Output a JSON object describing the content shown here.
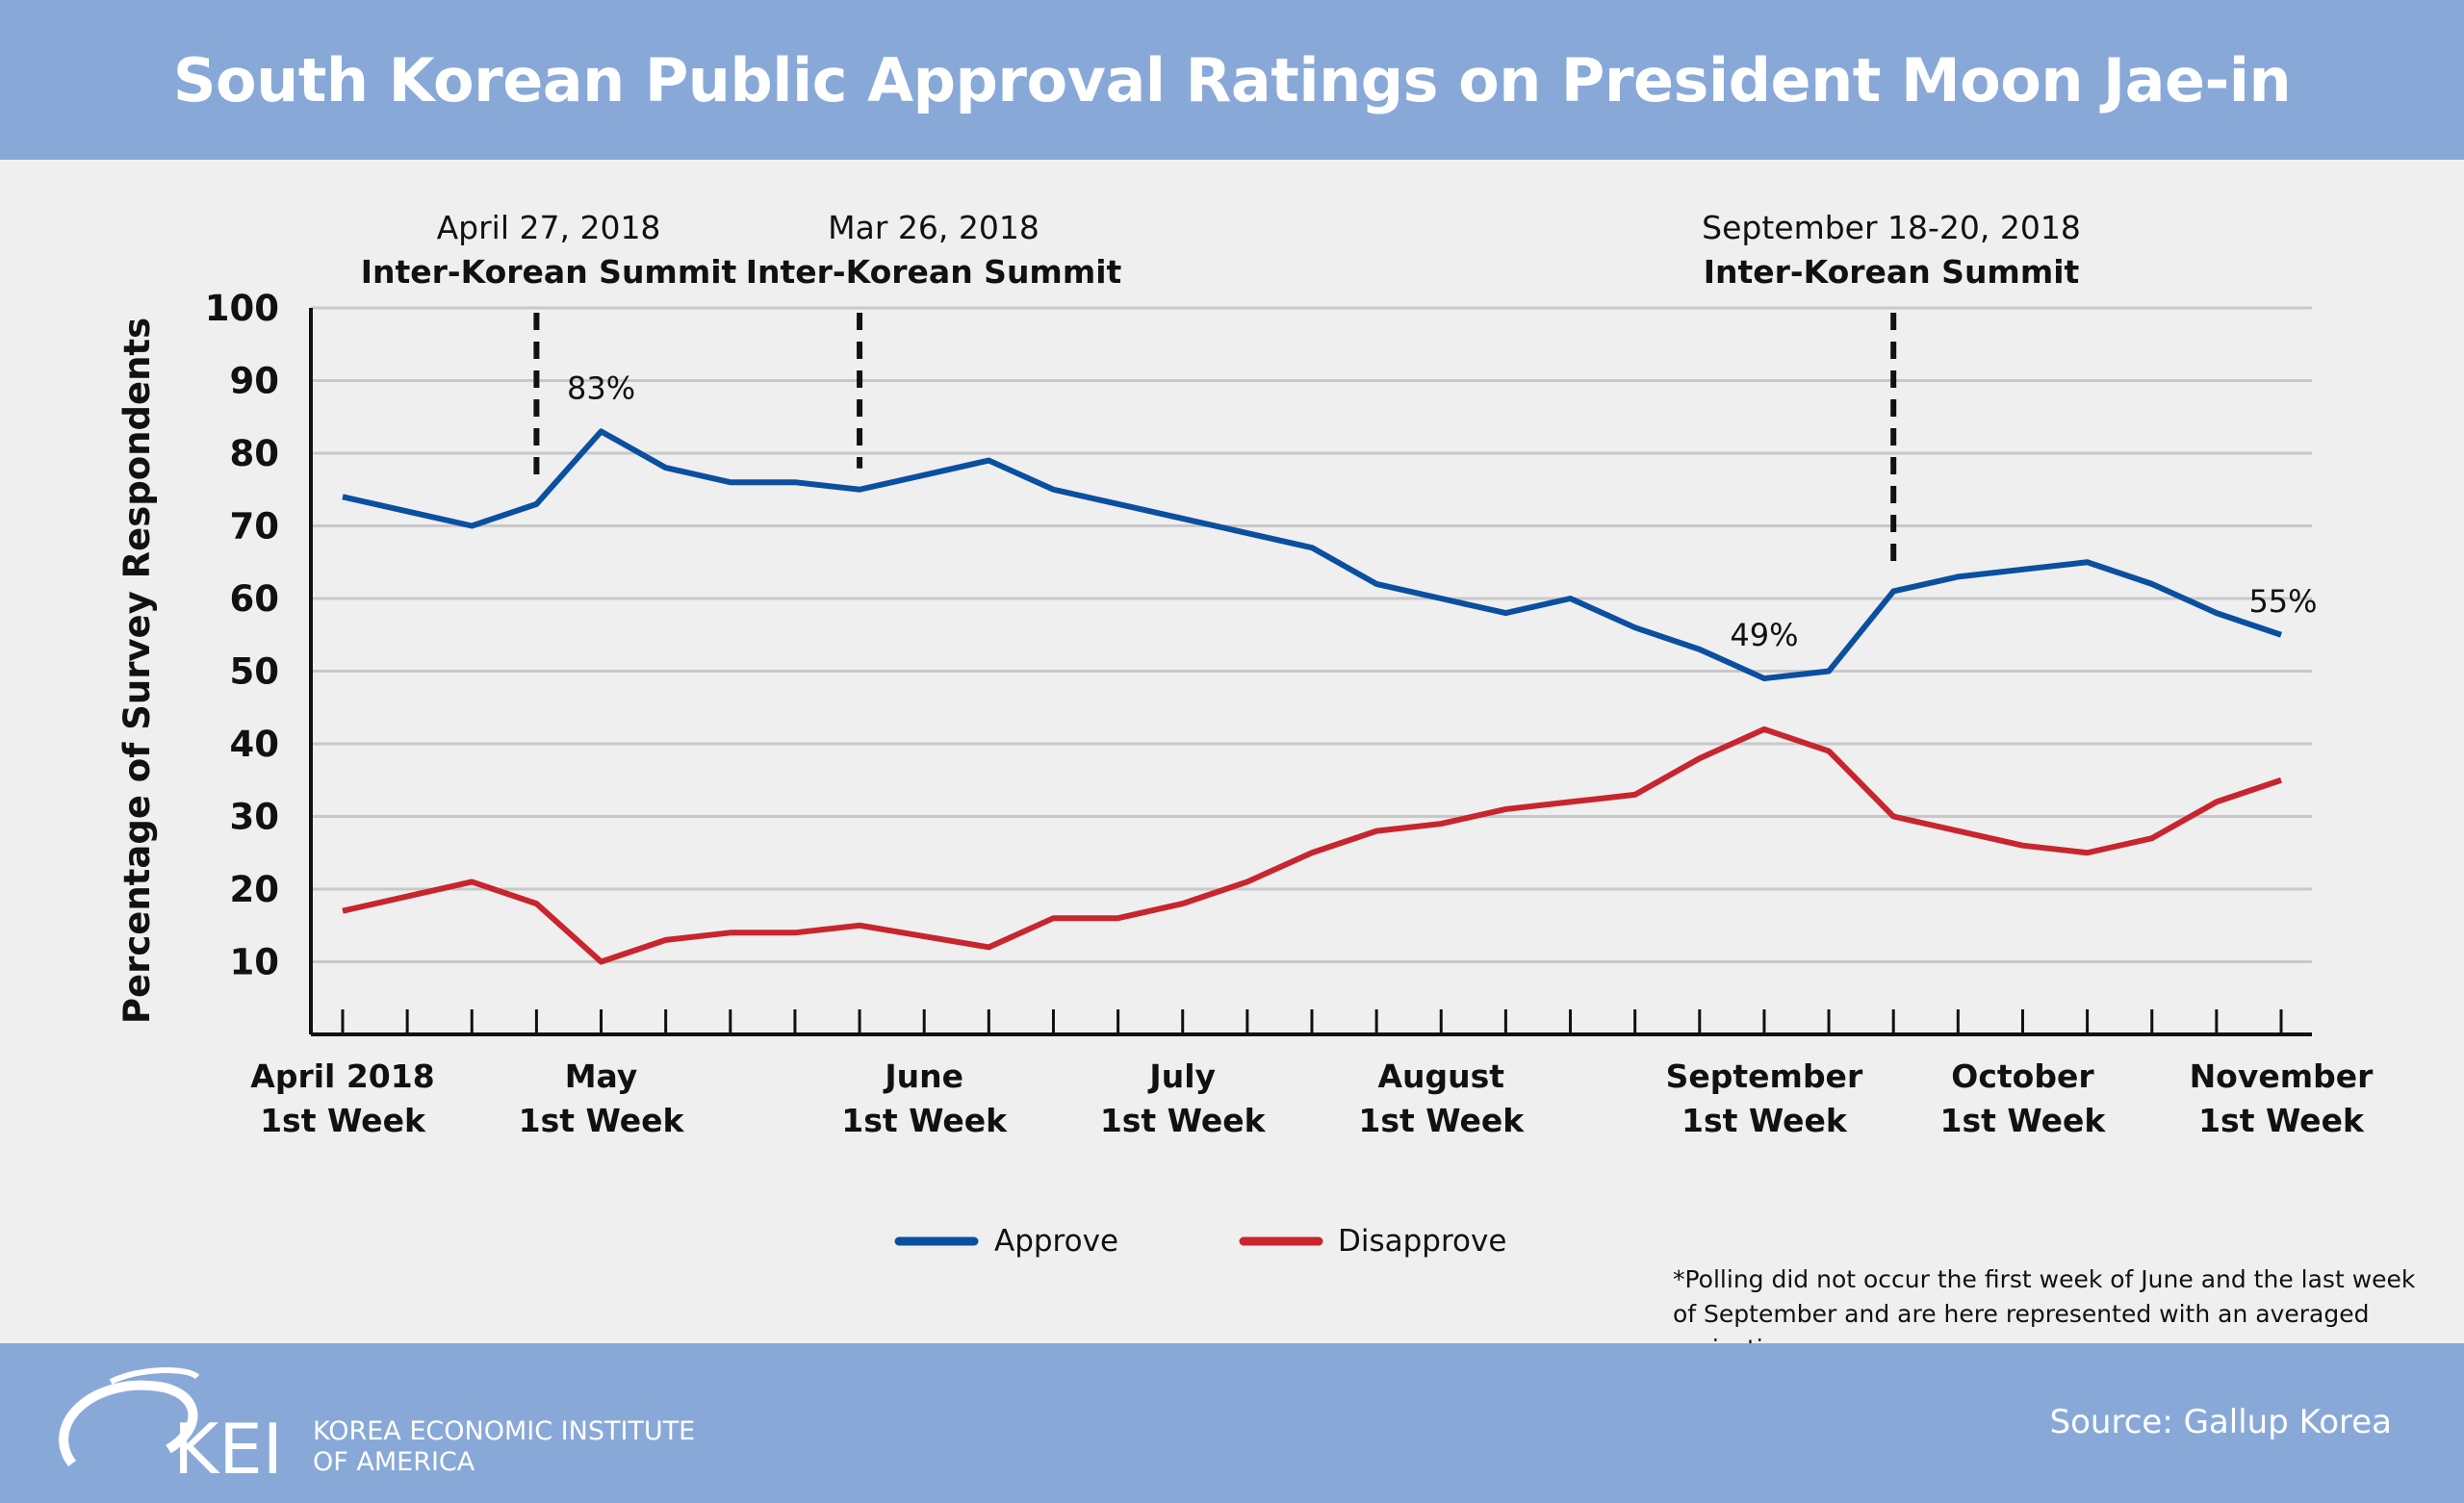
{
  "title": "South Korean Public Approval Ratings on President Moon Jae-in",
  "chart_data": {
    "type": "line",
    "title": "South Korean Public Approval Ratings on President Moon Jae-in",
    "ylabel": "Percentage of Survey Respondents",
    "xlabel": "",
    "ylim": [
      0,
      100
    ],
    "yticks": [
      10,
      20,
      30,
      40,
      50,
      60,
      70,
      80,
      90,
      100
    ],
    "grid": true,
    "x_count": 31,
    "x_tick_labels": [
      {
        "index": 0,
        "line1": "April 2018",
        "line2": "1st Week"
      },
      {
        "index": 4,
        "line1": "May",
        "line2": "1st Week"
      },
      {
        "index": 9,
        "line1": "June",
        "line2": "1st Week"
      },
      {
        "index": 13,
        "line1": "July",
        "line2": "1st Week"
      },
      {
        "index": 17,
        "line1": "August",
        "line2": "1st Week"
      },
      {
        "index": 22,
        "line1": "September",
        "line2": "1st Week"
      },
      {
        "index": 26,
        "line1": "October",
        "line2": "1st Week"
      },
      {
        "index": 30,
        "line1": "November",
        "line2": "1st Week"
      }
    ],
    "series": [
      {
        "name": "Approve",
        "color": "#0a4fa0",
        "values": [
          74,
          72,
          70,
          73,
          83,
          78,
          76,
          76,
          75,
          77,
          79,
          75,
          73,
          71,
          69,
          67,
          62,
          60,
          58,
          60,
          56,
          53,
          49,
          50,
          61,
          63,
          64,
          65,
          62,
          58,
          55
        ]
      },
      {
        "name": "Disapprove",
        "color": "#c8252e",
        "values": [
          17,
          19,
          21,
          18,
          10,
          13,
          14,
          14,
          15,
          13.5,
          12,
          16,
          16,
          18,
          21,
          25,
          28,
          29,
          31,
          32,
          33,
          38,
          42,
          39,
          30,
          28,
          26,
          25,
          27,
          32,
          35
        ]
      }
    ],
    "data_labels": [
      {
        "series": 0,
        "index": 4,
        "text": "83%"
      },
      {
        "series": 0,
        "index": 22,
        "text": "49%"
      },
      {
        "series": 0,
        "index": 30,
        "text": "55%"
      }
    ],
    "annotations": [
      {
        "index": 3,
        "date": "April 27, 2018",
        "event": "Inter-Korean Summit"
      },
      {
        "index": 8,
        "date": "Mar 26, 2018",
        "event": "Inter-Korean Summit"
      },
      {
        "index": 24,
        "date": "September 18-20, 2018",
        "event": "Inter-Korean Summit"
      }
    ],
    "legend_position": "bottom"
  },
  "note": "*Polling did not occur the first week of June and the last week of September and are here represented with an averaged projection.",
  "footer": {
    "logo_text": "KEI",
    "logo_subtitle_1": "KOREA ECONOMIC INSTITUTE",
    "logo_subtitle_2": "OF AMERICA",
    "source": "Source: Gallup Korea"
  }
}
